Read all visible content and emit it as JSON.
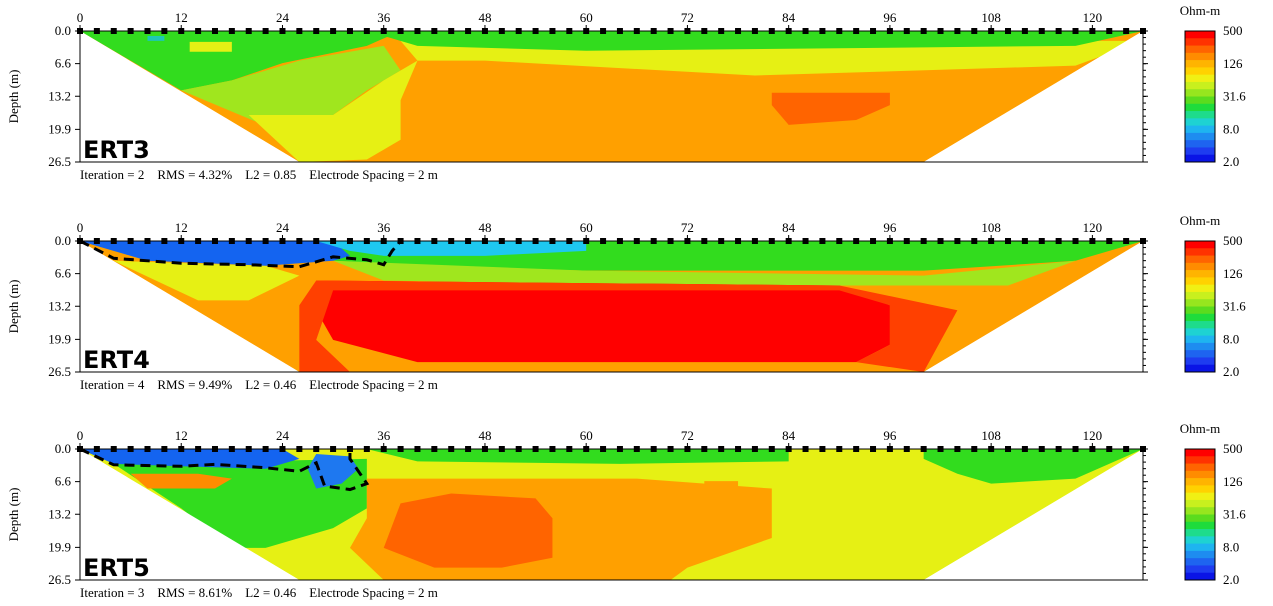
{
  "chart_data": [
    {
      "type": "heatmap",
      "name": "ERT3",
      "caption": "Iteration = 2    RMS = 4.32%    L2 = 0.85    Electrode Spacing = 2 m",
      "xticks": [
        "0",
        "12",
        "24",
        "36",
        "48",
        "60",
        "72",
        "84",
        "96",
        "108",
        "120"
      ],
      "yticks": [
        "0.0",
        "6.6",
        "13.2",
        "19.9",
        "26.5"
      ],
      "ylabel": "Depth (m)",
      "xlim": [
        0,
        126
      ],
      "ylim": [
        0,
        26.5
      ],
      "colorbar": {
        "title": "Ohm-m",
        "ticks": [
          "500",
          "126",
          "31.6",
          "8.0",
          "2.0"
        ]
      },
      "zones": [
        {
          "label": "background",
          "color": "#ffa000",
          "poly": [
            [
              0,
              0
            ],
            [
              126,
              0
            ],
            [
              100,
              26.5
            ],
            [
              26,
              26.5
            ]
          ]
        },
        {
          "label": "green-left",
          "color": "#32dc1e",
          "poly": [
            [
              0,
              0
            ],
            [
              38,
              0
            ],
            [
              34,
              3
            ],
            [
              24,
              6.5
            ],
            [
              18,
              10
            ],
            [
              12,
              12
            ]
          ]
        },
        {
          "label": "lightgreen-left",
          "color": "#a0e61e",
          "poly": [
            [
              12,
              12
            ],
            [
              18,
              10
            ],
            [
              26,
              6
            ],
            [
              36,
              3
            ],
            [
              38,
              8
            ],
            [
              34,
              12
            ],
            [
              30,
              17
            ],
            [
              26,
              22
            ]
          ]
        },
        {
          "label": "yellow-band",
          "color": "#e6f014",
          "poly": [
            [
              20,
              17
            ],
            [
              30,
              17
            ],
            [
              36,
              10
            ],
            [
              40,
              6
            ],
            [
              38,
              14
            ],
            [
              38,
              22
            ],
            [
              34,
              26
            ],
            [
              26,
              26.5
            ]
          ]
        },
        {
          "label": "yellow-top-right",
          "color": "#e6f014",
          "poly": [
            [
              38,
              2
            ],
            [
              126,
              2
            ],
            [
              118,
              7
            ],
            [
              80,
              9
            ],
            [
              48,
              6
            ],
            [
              40,
              6
            ]
          ]
        },
        {
          "label": "green-top-band",
          "color": "#32dc1e",
          "poly": [
            [
              34,
              0
            ],
            [
              126,
              0
            ],
            [
              118,
              3
            ],
            [
              60,
              4
            ],
            [
              40,
              3
            ]
          ]
        },
        {
          "label": "deep-orange",
          "color": "#ff6400",
          "poly": [
            [
              82,
              12.5
            ],
            [
              96,
              12.5
            ],
            [
              96,
              15
            ],
            [
              92,
              18
            ],
            [
              84,
              19
            ],
            [
              82,
              15
            ]
          ]
        },
        {
          "label": "light-yellow-spot",
          "color": "#e6f014",
          "poly": [
            [
              13,
              2.2
            ],
            [
              18,
              2.2
            ],
            [
              18,
              4.2
            ],
            [
              13,
              4.2
            ]
          ]
        },
        {
          "label": "blue-spots",
          "color": "#1ec8b4",
          "poly": [
            [
              8,
              1
            ],
            [
              10,
              1
            ],
            [
              10,
              2
            ],
            [
              8,
              2
            ]
          ]
        }
      ],
      "contours": []
    },
    {
      "type": "heatmap",
      "name": "ERT4",
      "caption": "Iteration = 4    RMS = 9.49%    L2 = 0.46    Electrode Spacing = 2 m",
      "xticks": [
        "0",
        "12",
        "24",
        "36",
        "48",
        "60",
        "72",
        "84",
        "96",
        "108",
        "120"
      ],
      "yticks": [
        "0.0",
        "6.6",
        "13.2",
        "19.9",
        "26.5"
      ],
      "ylabel": "Depth (m)",
      "xlim": [
        0,
        126
      ],
      "ylim": [
        0,
        26.5
      ],
      "colorbar": {
        "title": "Ohm-m",
        "ticks": [
          "500",
          "126",
          "31.6",
          "8.0",
          "2.0"
        ]
      },
      "zones": [
        {
          "label": "background",
          "color": "#ffa000",
          "poly": [
            [
              0,
              0
            ],
            [
              126,
              0
            ],
            [
              100,
              26.5
            ],
            [
              26,
              26.5
            ]
          ]
        },
        {
          "label": "yellow-wing",
          "color": "#e6f014",
          "poly": [
            [
              4,
              4
            ],
            [
              22,
              5
            ],
            [
              26,
              7
            ],
            [
              20,
              12
            ],
            [
              14,
              12
            ]
          ]
        },
        {
          "label": "green-top",
          "color": "#32dc1e",
          "poly": [
            [
              24,
              0
            ],
            [
              126,
              0
            ],
            [
              118,
              4
            ],
            [
              100,
              6
            ],
            [
              60,
              6
            ],
            [
              40,
              5
            ],
            [
              30,
              4
            ]
          ]
        },
        {
          "label": "light-green",
          "color": "#a0e61e",
          "poly": [
            [
              30,
              4
            ],
            [
              60,
              6
            ],
            [
              100,
              7
            ],
            [
              118,
              4
            ],
            [
              110,
              9
            ],
            [
              70,
              9
            ],
            [
              36,
              8
            ]
          ]
        },
        {
          "label": "blue-zone",
          "color": "#1464f0",
          "poly": [
            [
              0,
              0
            ],
            [
              30,
              0
            ],
            [
              32,
              3
            ],
            [
              30,
              4
            ],
            [
              22,
              5
            ],
            [
              8,
              4
            ],
            [
              2,
              1
            ]
          ]
        },
        {
          "label": "cyan-zone",
          "color": "#1ec8f0",
          "poly": [
            [
              28,
              0
            ],
            [
              60,
              0
            ],
            [
              60,
              2
            ],
            [
              48,
              3
            ],
            [
              36,
              3
            ],
            [
              32,
              2
            ]
          ]
        },
        {
          "label": "red-core",
          "color": "#ff0000",
          "poly": [
            [
              28,
              8
            ],
            [
              90,
              9
            ],
            [
              96,
              13
            ],
            [
              96,
              21
            ],
            [
              92,
              24.5
            ],
            [
              40,
              24.5
            ],
            [
              30,
              20
            ],
            [
              28,
              14
            ]
          ]
        },
        {
          "label": "red-orange-rim",
          "color": "#ff4000",
          "poly": [
            [
              26,
              13
            ],
            [
              28,
              8
            ],
            [
              90,
              9
            ],
            [
              104,
              14
            ],
            [
              100,
              26.5
            ],
            [
              92,
              24.5
            ],
            [
              96,
              21
            ],
            [
              96,
              13
            ],
            [
              90,
              10
            ],
            [
              30,
              10
            ],
            [
              28,
              20
            ],
            [
              32,
              26.5
            ],
            [
              26,
              26.5
            ]
          ]
        }
      ],
      "contours": [
        [
          [
            0,
            0
          ],
          [
            4,
            3.5
          ],
          [
            12,
            4.5
          ],
          [
            20,
            4.8
          ],
          [
            26,
            5.2
          ],
          [
            30,
            3.2
          ],
          [
            34,
            3.8
          ],
          [
            36,
            4.8
          ],
          [
            37,
            2
          ],
          [
            38,
            0
          ]
        ]
      ]
    },
    {
      "type": "heatmap",
      "name": "ERT5",
      "caption": "Iteration = 3    RMS = 8.61%    L2 = 0.46    Electrode Spacing = 2 m",
      "xticks": [
        "0",
        "12",
        "24",
        "36",
        "48",
        "60",
        "72",
        "84",
        "96",
        "108",
        "120"
      ],
      "yticks": [
        "0.0",
        "6.6",
        "13.2",
        "19.9",
        "26.5"
      ],
      "ylabel": "Depth (m)",
      "xlim": [
        0,
        126
      ],
      "ylim": [
        0,
        26.5
      ],
      "colorbar": {
        "title": "Ohm-m",
        "ticks": [
          "500",
          "126",
          "31.6",
          "8.0",
          "2.0"
        ]
      },
      "zones": [
        {
          "label": "background",
          "color": "#e6f014",
          "poly": [
            [
              0,
              0
            ],
            [
              126,
              0
            ],
            [
              100,
              26.5
            ],
            [
              26,
              26.5
            ]
          ]
        },
        {
          "label": "green-left",
          "color": "#32dc1e",
          "poly": [
            [
              4,
              3
            ],
            [
              34,
              2
            ],
            [
              34,
              12
            ],
            [
              30,
              16
            ],
            [
              22,
              20
            ],
            [
              18,
              20
            ],
            [
              12,
              12
            ]
          ]
        },
        {
          "label": "orange-mid",
          "color": "#ffa000",
          "poly": [
            [
              34,
              6
            ],
            [
              66,
              6
            ],
            [
              82,
              8
            ],
            [
              82,
              18
            ],
            [
              72,
              24
            ],
            [
              70,
              26.5
            ],
            [
              36,
              26.5
            ],
            [
              32,
              20
            ],
            [
              34,
              14
            ]
          ]
        },
        {
          "label": "red-orange-core",
          "color": "#ff6400",
          "poly": [
            [
              38,
              11
            ],
            [
              44,
              9
            ],
            [
              54,
              10
            ],
            [
              56,
              14
            ],
            [
              56,
              22
            ],
            [
              50,
              24
            ],
            [
              42,
              24
            ],
            [
              36,
              20
            ]
          ]
        },
        {
          "label": "orange-wing",
          "color": "#ff8c00",
          "poly": [
            [
              6,
              5
            ],
            [
              14,
              5
            ],
            [
              18,
              6
            ],
            [
              16,
              8
            ],
            [
              8,
              8
            ]
          ]
        },
        {
          "label": "blue-zone",
          "color": "#1464f0",
          "poly": [
            [
              0,
              0
            ],
            [
              24,
              0
            ],
            [
              26,
              2
            ],
            [
              22,
              4
            ],
            [
              12,
              3.5
            ],
            [
              4,
              3
            ]
          ]
        },
        {
          "label": "blue-pocket",
          "color": "#1e78f0",
          "poly": [
            [
              28,
              1
            ],
            [
              32,
              1.5
            ],
            [
              33,
              4
            ],
            [
              31,
              7
            ],
            [
              28,
              8
            ],
            [
              27,
              4
            ]
          ]
        },
        {
          "label": "green-top",
          "color": "#32dc1e",
          "poly": [
            [
              34,
              0
            ],
            [
              84,
              0
            ],
            [
              84,
              2.5
            ],
            [
              64,
              3
            ],
            [
              40,
              2.5
            ]
          ]
        },
        {
          "label": "green-right",
          "color": "#32dc1e",
          "poly": [
            [
              100,
              0
            ],
            [
              126,
              0
            ],
            [
              118,
              6
            ],
            [
              108,
              7
            ],
            [
              104,
              5
            ],
            [
              100,
              2
            ]
          ]
        },
        {
          "label": "orange-spot",
          "color": "#ffa000",
          "poly": [
            [
              74,
              6.5
            ],
            [
              78,
              6.5
            ],
            [
              78,
              8
            ],
            [
              74,
              8
            ]
          ]
        }
      ],
      "contours": [
        [
          [
            0,
            0
          ],
          [
            4,
            3.2
          ],
          [
            12,
            3.5
          ],
          [
            16,
            3.1
          ],
          [
            22,
            3.8
          ],
          [
            26,
            4.5
          ],
          [
            28,
            2.8
          ],
          [
            29,
            7.5
          ],
          [
            32,
            8.2
          ],
          [
            34,
            7
          ],
          [
            33,
            4.5
          ],
          [
            32,
            2
          ],
          [
            32,
            0
          ]
        ]
      ]
    }
  ]
}
